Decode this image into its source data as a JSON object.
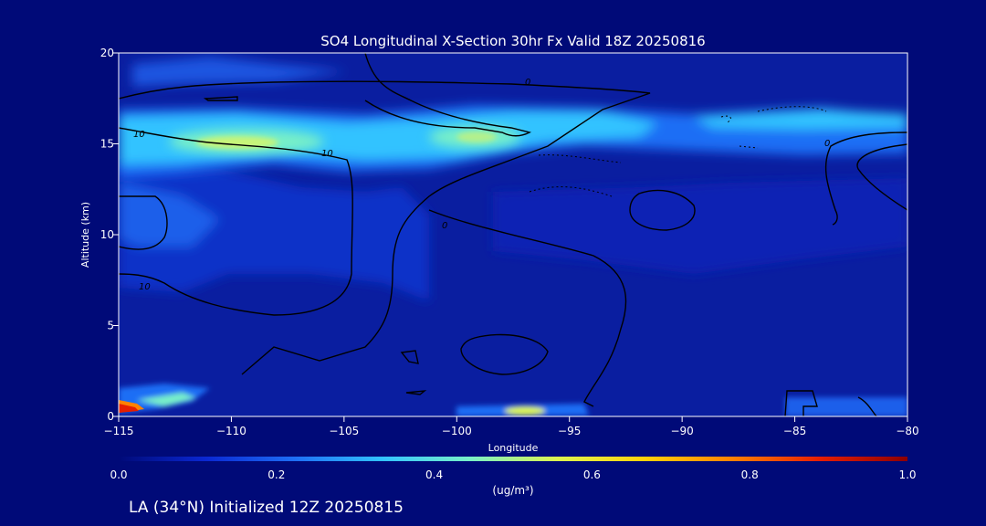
{
  "chart_data": {
    "type": "heatmap",
    "title": "SO4 Longitudinal X-Section 30hr  Fx Valid 18Z 20250816",
    "xlabel": "Longitude",
    "ylabel": "Altitude (km)",
    "xlim": [
      -115,
      -80
    ],
    "ylim": [
      0,
      20
    ],
    "x_ticks": [
      -115,
      -110,
      -105,
      -100,
      -95,
      -90,
      -85,
      -80
    ],
    "x_tick_labels": [
      "−115",
      "−110",
      "−105",
      "−100",
      "−95",
      "−90",
      "−85",
      "−80"
    ],
    "y_ticks": [
      0,
      5,
      10,
      15,
      20
    ],
    "y_tick_labels": [
      "0",
      "5",
      "10",
      "15",
      "20"
    ],
    "colorbar": {
      "min": 0.0,
      "max": 1.0,
      "ticks": [
        0.0,
        0.2,
        0.4,
        0.6,
        0.8,
        1.0
      ],
      "tick_labels": [
        "0.0",
        "0.2",
        "0.4",
        "0.6",
        "0.8",
        "1.0"
      ],
      "unit_label": "(ug/m³)",
      "colors": [
        "#000a78",
        "#0a28d2",
        "#1e6ef5",
        "#32c3ff",
        "#78f0c8",
        "#dcf550",
        "#ffd20a",
        "#ff8200",
        "#e61e00",
        "#8c0000"
      ]
    },
    "features": [
      {
        "name": "upper-layer-band",
        "x": [
          -115,
          -80
        ],
        "y": [
          14,
          18
        ],
        "value": 0.35
      },
      {
        "name": "upper-max-west",
        "x": -110,
        "y": 15,
        "value": 0.55
      },
      {
        "name": "upper-max-central",
        "x": -99,
        "y": 15.5,
        "value": 0.5
      },
      {
        "name": "surface-max",
        "x": -115,
        "y": 0.5,
        "value": 1.0
      },
      {
        "name": "surface-plume",
        "x": -97,
        "y": 0.3,
        "value": 0.45
      }
    ],
    "contour_labels": [
      "0",
      "10",
      "10",
      "10",
      "0",
      "0"
    ]
  },
  "footer": {
    "location_label": "LA (34°N) Initialized 12Z 20250815"
  }
}
